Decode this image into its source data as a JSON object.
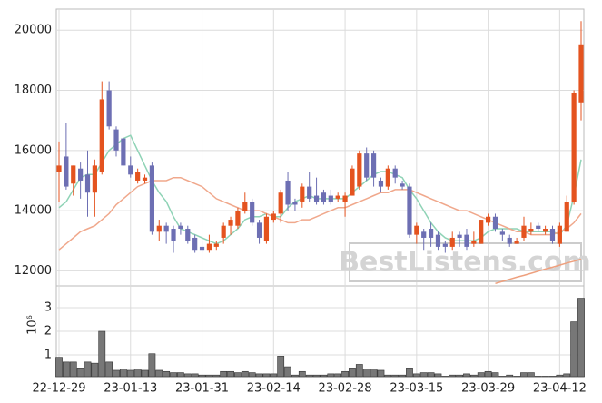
{
  "chart_data": [
    {
      "type": "candlestick",
      "up_color": "#e4531f",
      "down_color": "#6d6fb3",
      "grid": true,
      "ylim": [
        11500,
        20700
      ],
      "yticks": [
        12000,
        14000,
        16000,
        18000,
        20000
      ],
      "watermark": "BestListens.com",
      "open": [
        15300,
        15800,
        14900,
        15400,
        15200,
        14600,
        15300,
        18000,
        16700,
        16400,
        15500,
        15000,
        15000,
        15500,
        13300,
        13500,
        13400,
        13500,
        13400,
        13100,
        12800,
        12700,
        12800,
        13100,
        13500,
        13500,
        14000,
        14300,
        13600,
        13000,
        13700,
        13900,
        15000,
        14300,
        14300,
        14800,
        14500,
        14600,
        14500,
        14400,
        14300,
        14500,
        14800,
        15900,
        15900,
        15000,
        14800,
        15400,
        14900,
        14800,
        13200,
        13300,
        13400,
        13200,
        12900,
        12800,
        13200,
        13200,
        12900,
        12900,
        13600,
        13800,
        13300,
        13100,
        12900,
        13100,
        13300,
        13500,
        13300,
        13400,
        12900,
        13300,
        14300,
        17600
      ],
      "high": [
        16300,
        16900,
        15500,
        15600,
        16000,
        15700,
        18300,
        18300,
        16800,
        16400,
        15800,
        15400,
        15200,
        15600,
        13700,
        13600,
        13500,
        13600,
        13500,
        13200,
        13000,
        13200,
        13000,
        13600,
        13800,
        14100,
        14600,
        14400,
        13700,
        13900,
        14000,
        14700,
        15300,
        14400,
        14900,
        15300,
        15100,
        14700,
        14700,
        14600,
        14600,
        15500,
        16000,
        16100,
        16000,
        15100,
        15500,
        15500,
        15000,
        14900,
        13600,
        13400,
        13600,
        13300,
        13000,
        13300,
        13300,
        13400,
        13300,
        13700,
        13900,
        13900,
        13400,
        13200,
        13100,
        13800,
        13600,
        13600,
        13500,
        13500,
        13600,
        14500,
        18000,
        20300
      ],
      "low": [
        14300,
        14700,
        14500,
        14400,
        13800,
        13800,
        15200,
        16700,
        15800,
        15500,
        15100,
        14900,
        14900,
        13200,
        13000,
        12900,
        12600,
        13200,
        12900,
        12600,
        12600,
        12600,
        12700,
        12900,
        13200,
        13400,
        13900,
        13500,
        12900,
        12900,
        13600,
        13600,
        14000,
        14000,
        14100,
        14300,
        14200,
        14200,
        14200,
        14300,
        13800,
        14500,
        14700,
        15000,
        14800,
        14600,
        14700,
        14900,
        14700,
        13100,
        12900,
        12700,
        12800,
        12700,
        12600,
        12700,
        12800,
        12700,
        12800,
        12900,
        13500,
        13300,
        13000,
        12800,
        12900,
        13000,
        13200,
        13300,
        13200,
        12900,
        12800,
        13300,
        14200,
        17000
      ],
      "close": [
        15500,
        14800,
        15500,
        15000,
        14600,
        15500,
        17700,
        16800,
        16000,
        15500,
        15200,
        15300,
        15100,
        13300,
        13500,
        13300,
        13000,
        13400,
        13000,
        12700,
        12700,
        12900,
        12900,
        13500,
        13700,
        14000,
        14300,
        13600,
        13100,
        13800,
        13900,
        14600,
        14200,
        14200,
        14800,
        14400,
        14300,
        14300,
        14300,
        14500,
        14500,
        15400,
        15900,
        15100,
        15100,
        14800,
        15400,
        15100,
        14800,
        13200,
        13500,
        13100,
        13100,
        12800,
        12800,
        13100,
        13100,
        12800,
        13000,
        13700,
        13800,
        13400,
        13200,
        12900,
        13000,
        13500,
        13400,
        13400,
        13400,
        13000,
        13500,
        14300,
        17900,
        19500
      ],
      "series": [
        {
          "color": "#8fd3b6",
          "values": [
            14100,
            14300,
            14700,
            15100,
            15200,
            15200,
            15600,
            16000,
            16200,
            16400,
            16500,
            16000,
            15500,
            15000,
            14600,
            14300,
            13800,
            13400,
            13300,
            13200,
            13100,
            13000,
            12900,
            13000,
            13200,
            13400,
            13700,
            13800,
            13800,
            13900,
            13800,
            13800,
            14100,
            14300,
            14400,
            14500,
            14400,
            14400,
            14400,
            14400,
            14400,
            14600,
            14800,
            15000,
            15200,
            15300,
            15300,
            15200,
            15100,
            14700,
            14400,
            14000,
            13600,
            13300,
            13100,
            13000,
            13000,
            13000,
            13000,
            13100,
            13300,
            13400,
            13400,
            13400,
            13400,
            13300,
            13300,
            13300,
            13300,
            13300,
            13200,
            13500,
            14500,
            15700
          ]
        },
        {
          "color": "#f0a88c",
          "values": [
            12700,
            12900,
            13100,
            13300,
            13400,
            13500,
            13700,
            13900,
            14200,
            14400,
            14600,
            14800,
            14900,
            15000,
            15000,
            15000,
            15100,
            15100,
            15000,
            14900,
            14800,
            14600,
            14400,
            14300,
            14200,
            14100,
            14000,
            14000,
            14000,
            13900,
            13800,
            13700,
            13600,
            13600,
            13700,
            13700,
            13800,
            13900,
            14000,
            14100,
            14100,
            14200,
            14300,
            14400,
            14500,
            14600,
            14600,
            14700,
            14700,
            14700,
            14600,
            14500,
            14400,
            14300,
            14200,
            14100,
            14000,
            14000,
            13900,
            13800,
            13700,
            13600,
            13500,
            13400,
            13300,
            13300,
            13200,
            13200,
            13200,
            13200,
            13300,
            13400,
            13600,
            13900
          ]
        },
        {
          "color": "#eea07e",
          "values": [
            null,
            null,
            null,
            null,
            null,
            null,
            null,
            null,
            null,
            null,
            null,
            null,
            null,
            null,
            null,
            null,
            null,
            null,
            null,
            null,
            null,
            null,
            null,
            null,
            null,
            null,
            null,
            null,
            null,
            null,
            null,
            null,
            null,
            null,
            null,
            null,
            null,
            null,
            null,
            null,
            null,
            null,
            null,
            null,
            null,
            null,
            null,
            null,
            null,
            null,
            null,
            null,
            null,
            null,
            null,
            null,
            null,
            null,
            null,
            null,
            null,
            11580,
            11650,
            11720,
            11790,
            11850,
            11920,
            11990,
            12060,
            12120,
            12190,
            12260,
            12320,
            12390
          ]
        }
      ]
    },
    {
      "type": "bar",
      "color": "#777777",
      "ylabel": "10⁶",
      "ylim": [
        0.08,
        3.92
      ],
      "yticks": [
        1,
        2,
        3
      ],
      "categories": [
        "22-12-29",
        null,
        null,
        null,
        null,
        null,
        null,
        null,
        null,
        null,
        "23-01-13",
        null,
        null,
        null,
        null,
        null,
        null,
        null,
        null,
        null,
        "23-01-31",
        null,
        null,
        null,
        null,
        null,
        null,
        null,
        null,
        null,
        "23-02-14",
        null,
        null,
        null,
        null,
        null,
        null,
        null,
        null,
        null,
        "23-02-28",
        null,
        null,
        null,
        null,
        null,
        null,
        null,
        null,
        null,
        "23-03-15",
        null,
        null,
        null,
        null,
        null,
        null,
        null,
        null,
        null,
        "23-03-29",
        null,
        null,
        null,
        null,
        null,
        null,
        null,
        null,
        null,
        "23-04-12",
        null,
        null,
        null
      ],
      "values": [
        0.9,
        0.7,
        0.7,
        0.45,
        0.7,
        0.65,
        2.0,
        0.7,
        0.35,
        0.4,
        0.35,
        0.4,
        0.35,
        1.05,
        0.35,
        0.3,
        0.25,
        0.25,
        0.2,
        0.2,
        0.15,
        0.15,
        0.15,
        0.3,
        0.3,
        0.25,
        0.3,
        0.25,
        0.2,
        0.2,
        0.2,
        0.95,
        0.5,
        0.15,
        0.3,
        0.15,
        0.15,
        0.15,
        0.2,
        0.2,
        0.3,
        0.45,
        0.6,
        0.4,
        0.4,
        0.35,
        0.15,
        0.15,
        0.15,
        0.45,
        0.2,
        0.25,
        0.25,
        0.2,
        0.1,
        0.15,
        0.15,
        0.2,
        0.15,
        0.25,
        0.3,
        0.25,
        0.1,
        0.15,
        0.1,
        0.25,
        0.25,
        0.1,
        0.1,
        0.1,
        0.15,
        0.2,
        2.4,
        3.4
      ]
    }
  ]
}
